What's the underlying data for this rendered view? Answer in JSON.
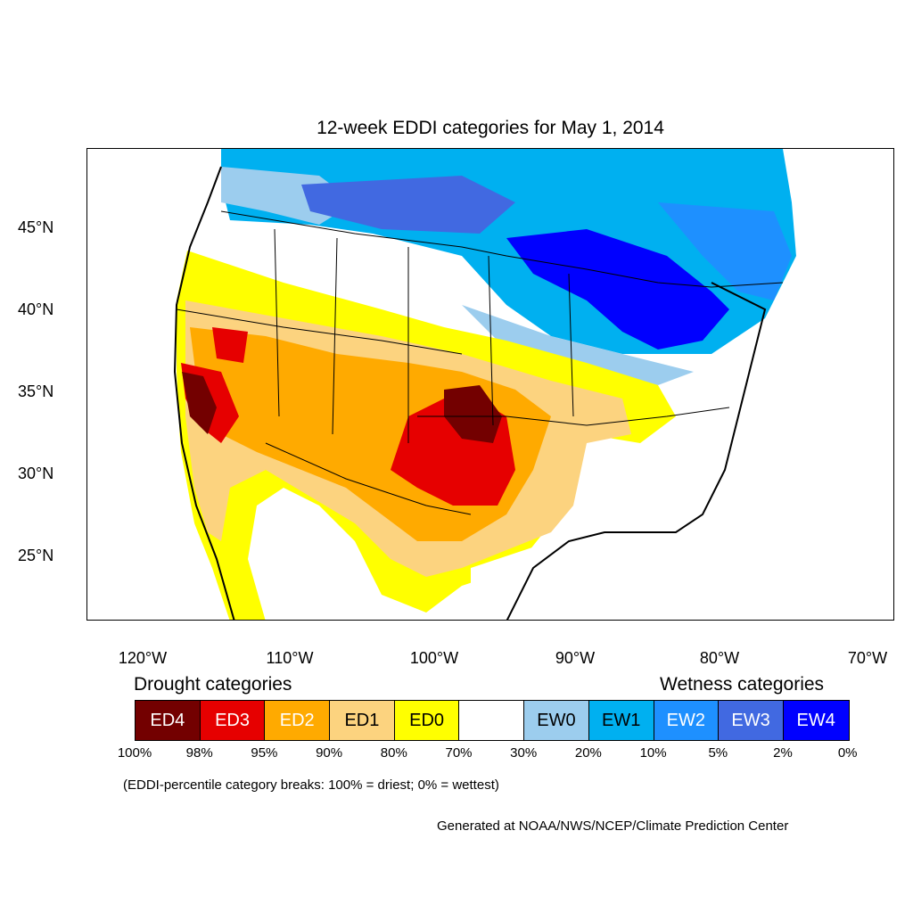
{
  "title": "12-week EDDI categories for May 1, 2014",
  "latitude_labels": [
    "45°N",
    "40°N",
    "35°N",
    "30°N",
    "25°N"
  ],
  "longitude_labels": [
    "120°W",
    "110°W",
    "100°W",
    "90°W",
    "80°W",
    "70°W"
  ],
  "legend": {
    "drought_heading": "Drought categories",
    "wetness_heading": "Wetness categories",
    "categories": [
      {
        "label": "ED4",
        "color": "#730000",
        "text_color": "#ffffff"
      },
      {
        "label": "ED3",
        "color": "#e60000",
        "text_color": "#ffffff"
      },
      {
        "label": "ED2",
        "color": "#ffaa00",
        "text_color": "#ffffff"
      },
      {
        "label": "ED1",
        "color": "#fcd37f",
        "text_color": "#000000"
      },
      {
        "label": "ED0",
        "color": "#ffff00",
        "text_color": "#000000"
      },
      {
        "label": "",
        "color": "#ffffff",
        "text_color": "#000000"
      },
      {
        "label": "EW0",
        "color": "#9ccdee",
        "text_color": "#000000"
      },
      {
        "label": "EW1",
        "color": "#00b0f0",
        "text_color": "#000000"
      },
      {
        "label": "EW2",
        "color": "#1e90ff",
        "text_color": "#ffffff"
      },
      {
        "label": "EW3",
        "color": "#4169e1",
        "text_color": "#ffffff"
      },
      {
        "label": "EW4",
        "color": "#0000ff",
        "text_color": "#ffffff"
      }
    ],
    "percentile_ticks": [
      "100%",
      "98%",
      "95%",
      "90%",
      "80%",
      "70%",
      "30%",
      "20%",
      "10%",
      "5%",
      "2%",
      "0%"
    ]
  },
  "note": "(EDDI-percentile category breaks: 100% = driest; 0% = wettest)",
  "credit": "Generated at NOAA/NWS/NCEP/Climate Prediction Center"
}
